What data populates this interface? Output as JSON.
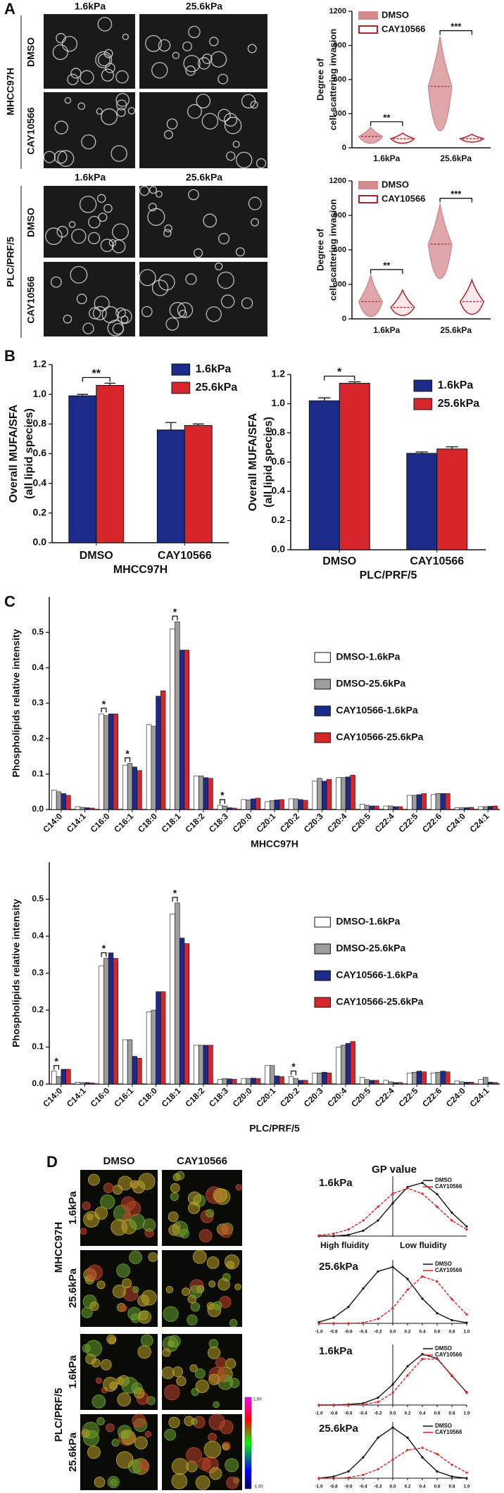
{
  "figure": {
    "panel_labels": [
      "A",
      "B",
      "C",
      "D"
    ],
    "panel_a": {
      "columns": [
        "1.6kPa",
        "25.6kPa"
      ],
      "cell_lines": [
        "MHCC97H",
        "PLC/PRF/5"
      ],
      "treatments": [
        "DMSO",
        "CAY10566"
      ]
    },
    "panel_d": {
      "columns": [
        "DMSO",
        "CAY10566"
      ],
      "cell_lines": [
        "MHCC97H",
        "PLC/PRF/5"
      ],
      "stiffness": [
        "1.6kPa",
        "25.6kPa"
      ],
      "colorbar": [
        "1.00",
        "-1.00"
      ],
      "gp_title": "GP value",
      "fluidity": [
        "High fluidity",
        "Low fluidity"
      ]
    }
  },
  "chart_data": [
    {
      "type": "violin",
      "ylabel": [
        "Degree of",
        "cell-scattering invasion"
      ],
      "categories": [
        "1.6kPa",
        "25.6kPa"
      ],
      "series": [
        {
          "name": "DMSO",
          "color": "#d48a8e",
          "values": [
            100,
            540
          ],
          "min": [
            40,
            150
          ],
          "max": [
            180,
            980
          ]
        },
        {
          "name": "CAY10566",
          "color": "#b0252c",
          "values": [
            80,
            80
          ],
          "min": [
            40,
            50
          ],
          "max": [
            130,
            120
          ]
        }
      ],
      "ylim": [
        0,
        1200
      ],
      "yticks": [
        0,
        300,
        600,
        900,
        1200
      ],
      "annotations": [
        {
          "text": "**",
          "category": "1.6kPa"
        },
        {
          "text": "***",
          "category": "25.6kPa"
        }
      ]
    },
    {
      "type": "violin",
      "ylabel": [
        "Degree of",
        "cell-scattering invasion"
      ],
      "categories": [
        "1.6kPa",
        "25.6kPa"
      ],
      "series": [
        {
          "name": "DMSO",
          "color": "#d48a8e",
          "values": [
            150,
            650
          ],
          "min": [
            20,
            350
          ],
          "max": [
            380,
            1000
          ]
        },
        {
          "name": "CAY10566",
          "color": "#b0252c",
          "values": [
            100,
            150
          ],
          "min": [
            30,
            40
          ],
          "max": [
            250,
            340
          ]
        }
      ],
      "ylim": [
        0,
        1200
      ],
      "yticks": [
        0,
        300,
        600,
        900,
        1200
      ],
      "annotations": [
        {
          "text": "**",
          "category": "1.6kPa"
        },
        {
          "text": "***",
          "category": "25.6kPa"
        }
      ]
    },
    {
      "type": "bar",
      "ylabel": [
        "Overall MUFA/SFA",
        "(all lipid species)"
      ],
      "xlabel": "MHCC97H",
      "categories": [
        "DMSO",
        "CAY10566"
      ],
      "series": [
        {
          "name": "1.6kPa",
          "color": "#1c2a8a",
          "values": [
            0.99,
            0.76
          ],
          "errors": [
            0.01,
            0.05
          ]
        },
        {
          "name": "25.6kPa",
          "color": "#d7262b",
          "values": [
            1.06,
            0.79
          ],
          "errors": [
            0.015,
            0.01
          ]
        }
      ],
      "ylim": [
        0,
        1.2
      ],
      "yticks": [
        {
          "value": 0,
          "label": "0.0"
        },
        0.2,
        0.4,
        0.6,
        0.8,
        {
          "value": 1,
          "label": "1.0"
        },
        1.2
      ],
      "annotations": [
        {
          "text": "**",
          "category": "DMSO"
        }
      ]
    },
    {
      "type": "bar",
      "ylabel": [
        "Overall MUFA/SFA",
        "(all lipid species)"
      ],
      "xlabel": "PLC/PRF/5",
      "categories": [
        "DMSO",
        "CAY10566"
      ],
      "series": [
        {
          "name": "1.6kPa",
          "color": "#1c2a8a",
          "values": [
            1.02,
            0.66
          ],
          "errors": [
            0.02,
            0.01
          ]
        },
        {
          "name": "25.6kPa",
          "color": "#d7262b",
          "values": [
            1.14,
            0.69
          ],
          "errors": [
            0.01,
            0.015
          ]
        }
      ],
      "ylim": [
        0,
        1.2
      ],
      "yticks": [
        {
          "value": 0,
          "label": "0.0"
        },
        0.2,
        0.4,
        0.6,
        0.8,
        {
          "value": 1,
          "label": "1.0"
        },
        1.2
      ],
      "annotations": [
        {
          "text": "*",
          "category": "DMSO"
        }
      ]
    },
    {
      "type": "bar",
      "ylabel": [
        "Phospholipids relative intensity"
      ],
      "xlabel": "MHCC97H",
      "categories": [
        "C14:0",
        "C14:1",
        "C16:0",
        "C16:1",
        "C18:0",
        "C18:1",
        "C18:2",
        "C18:3",
        "C20:0",
        "C20:1",
        "C20:2",
        "C20:3",
        "C20:4",
        "C20:5",
        "C22:4",
        "C22:5",
        "C22:6",
        "C24:0",
        "C24:1"
      ],
      "series": [
        {
          "name": "DMSO-1.6kPa",
          "color": "#ffffff",
          "values": [
            0.055,
            0.008,
            0.27,
            0.125,
            0.24,
            0.51,
            0.095,
            0.012,
            0.028,
            0.022,
            0.03,
            0.08,
            0.09,
            0.015,
            0.01,
            0.04,
            0.042,
            0.005,
            0.008
          ]
        },
        {
          "name": "DMSO-25.6kPa",
          "color": "#9e9e9e",
          "values": [
            0.05,
            0.006,
            0.265,
            0.13,
            0.235,
            0.53,
            0.095,
            0.01,
            0.027,
            0.025,
            0.03,
            0.088,
            0.09,
            0.012,
            0.01,
            0.04,
            0.045,
            0.005,
            0.008
          ]
        },
        {
          "name": "CAY10566-1.6kPa",
          "color": "#1c2a8a",
          "values": [
            0.045,
            0.005,
            0.27,
            0.12,
            0.32,
            0.45,
            0.09,
            0.005,
            0.03,
            0.027,
            0.028,
            0.08,
            0.092,
            0.01,
            0.008,
            0.042,
            0.045,
            0.005,
            0.009
          ]
        },
        {
          "name": "CAY10566-25.6kPa",
          "color": "#d7262b",
          "values": [
            0.04,
            0.004,
            0.27,
            0.11,
            0.335,
            0.45,
            0.088,
            0.004,
            0.032,
            0.028,
            0.026,
            0.085,
            0.097,
            0.01,
            0.008,
            0.045,
            0.045,
            0.006,
            0.01
          ]
        }
      ],
      "ylim": [
        0,
        0.6
      ],
      "yticks": [
        {
          "value": 0,
          "label": "0.0"
        },
        0.1,
        0.2,
        0.3,
        0.4,
        0.5
      ],
      "annotations": [
        {
          "text": "*",
          "category": "C16:0"
        },
        {
          "text": "*",
          "category": "C16:1"
        },
        {
          "text": "*",
          "category": "C18:1"
        },
        {
          "text": "*",
          "category": "C18:3"
        }
      ]
    },
    {
      "type": "bar",
      "ylabel": [
        "Phospholipids relative intensity"
      ],
      "xlabel": "PLC/PRF/5",
      "categories": [
        "C14:0",
        "C14:1",
        "C16:0",
        "C16:1",
        "C18:0",
        "C18:1",
        "C18:2",
        "C18:3",
        "C20:0",
        "C20:1",
        "C20:2",
        "C20:3",
        "C20:4",
        "C20:5",
        "C22:4",
        "C22:5",
        "C22:6",
        "C24:0",
        "C24:1"
      ],
      "series": [
        {
          "name": "DMSO-1.6kPa",
          "color": "#ffffff",
          "values": [
            0.035,
            0.005,
            0.32,
            0.12,
            0.195,
            0.46,
            0.105,
            0.012,
            0.015,
            0.05,
            0.02,
            0.03,
            0.1,
            0.018,
            0.01,
            0.03,
            0.03,
            0.008,
            0.012
          ]
        },
        {
          "name": "DMSO-25.6kPa",
          "color": "#9e9e9e",
          "values": [
            0.02,
            0.004,
            0.34,
            0.12,
            0.2,
            0.49,
            0.105,
            0.015,
            0.015,
            0.05,
            0.015,
            0.03,
            0.105,
            0.012,
            0.006,
            0.032,
            0.032,
            0.006,
            0.018
          ]
        },
        {
          "name": "CAY10566-1.6kPa",
          "color": "#1c2a8a",
          "values": [
            0.04,
            0.004,
            0.355,
            0.075,
            0.25,
            0.395,
            0.105,
            0.014,
            0.016,
            0.022,
            0.01,
            0.032,
            0.11,
            0.01,
            0.004,
            0.035,
            0.035,
            0.005,
            0.005
          ]
        },
        {
          "name": "CAY10566-25.6kPa",
          "color": "#d7262b",
          "values": [
            0.04,
            0.003,
            0.34,
            0.07,
            0.25,
            0.38,
            0.105,
            0.013,
            0.015,
            0.02,
            0.01,
            0.03,
            0.115,
            0.01,
            0.004,
            0.033,
            0.033,
            0.005,
            0.004
          ]
        }
      ],
      "ylim": [
        0,
        0.6
      ],
      "yticks": [
        {
          "value": 0,
          "label": "0.0"
        },
        0.1,
        0.2,
        0.3,
        0.4,
        0.5
      ],
      "annotations": [
        {
          "text": "*",
          "category": "C14:0"
        },
        {
          "text": "*",
          "category": "C16:0"
        },
        {
          "text": "*",
          "category": "C18:1"
        },
        {
          "text": "*",
          "category": "C20:2"
        }
      ]
    },
    {
      "type": "line",
      "title": "1.6kPa",
      "x": [
        -1,
        -0.8,
        -0.6,
        -0.4,
        -0.2,
        0,
        0.2,
        0.4,
        0.6,
        0.8,
        1
      ],
      "xlim": [
        -1,
        1
      ],
      "ylim": [
        0,
        1
      ],
      "series": [
        {
          "name": "DMSO",
          "color": "#111111",
          "values": [
            0,
            0,
            0.02,
            0.09,
            0.26,
            0.55,
            0.82,
            0.89,
            0.7,
            0.39,
            0.16
          ]
        },
        {
          "name": "CAY10566",
          "color": "#e0201c",
          "values": [
            0.01,
            0.04,
            0.11,
            0.26,
            0.49,
            0.71,
            0.8,
            0.71,
            0.49,
            0.26,
            0.11
          ]
        }
      ]
    },
    {
      "type": "line",
      "title": "25.6kPa",
      "x": [
        -1,
        -0.8,
        -0.6,
        -0.4,
        -0.2,
        0,
        0.2,
        0.4,
        0.6,
        0.8,
        1
      ],
      "xlim": [
        -1,
        1
      ],
      "ylim": [
        0,
        1
      ],
      "xticks": [
        {
          "value": -1,
          "label": "-1.0"
        },
        -0.8,
        -0.6,
        -0.4,
        -0.2,
        {
          "value": 0,
          "label": "0.0"
        },
        0.2,
        0.4,
        0.6,
        0.8,
        {
          "value": 1,
          "label": "1.0"
        }
      ],
      "series": [
        {
          "name": "DMSO",
          "color": "#111111",
          "values": [
            0.02,
            0.09,
            0.26,
            0.55,
            0.82,
            0.89,
            0.7,
            0.39,
            0.16,
            0.05,
            0.01
          ]
        },
        {
          "name": "CAY10566",
          "color": "#e0201c",
          "values": [
            0,
            0,
            0,
            0.01,
            0.07,
            0.24,
            0.53,
            0.74,
            0.66,
            0.38,
            0.14
          ]
        }
      ]
    },
    {
      "type": "line",
      "title": "1.6kPa",
      "x": [
        -1,
        -0.8,
        -0.6,
        -0.4,
        -0.2,
        0,
        0.2,
        0.4,
        0.6,
        0.8,
        1
      ],
      "xlim": [
        -1,
        1
      ],
      "ylim": [
        0,
        1
      ],
      "xticks": [
        {
          "value": -1,
          "label": "-1.0"
        },
        -0.8,
        -0.6,
        -0.4,
        -0.2,
        {
          "value": 0,
          "label": "0.0"
        },
        0.2,
        0.4,
        0.6,
        0.8,
        {
          "value": 1,
          "label": "1.0"
        }
      ],
      "series": [
        {
          "name": "DMSO",
          "color": "#111111",
          "values": [
            0,
            0,
            0.01,
            0.03,
            0.12,
            0.34,
            0.64,
            0.84,
            0.77,
            0.48,
            0.21
          ]
        },
        {
          "name": "CAY10566",
          "color": "#e0201c",
          "values": [
            0,
            0,
            0,
            0.01,
            0.05,
            0.2,
            0.49,
            0.76,
            0.76,
            0.49,
            0.2
          ]
        }
      ]
    },
    {
      "type": "line",
      "title": "25.6kPa",
      "x": [
        -1,
        -0.8,
        -0.6,
        -0.4,
        -0.2,
        0,
        0.2,
        0.4,
        0.6,
        0.8,
        1
      ],
      "xlim": [
        -1,
        1
      ],
      "ylim": [
        0,
        1
      ],
      "xticks": [
        {
          "value": -1,
          "label": "-1.0"
        },
        -0.8,
        -0.6,
        -0.4,
        -0.2,
        {
          "value": 0,
          "label": "0.0"
        },
        0.2,
        0.4,
        0.6,
        0.8,
        {
          "value": 1,
          "label": "1.0"
        }
      ],
      "series": [
        {
          "name": "DMSO",
          "color": "#111111",
          "values": [
            0,
            0.03,
            0.12,
            0.37,
            0.72,
            0.9,
            0.72,
            0.37,
            0.12,
            0.03,
            0
          ]
        },
        {
          "name": "CAY10566",
          "color": "#e0201c",
          "values": [
            0,
            0,
            0.01,
            0.06,
            0.16,
            0.33,
            0.5,
            0.54,
            0.43,
            0.24,
            0.1
          ]
        }
      ]
    }
  ]
}
